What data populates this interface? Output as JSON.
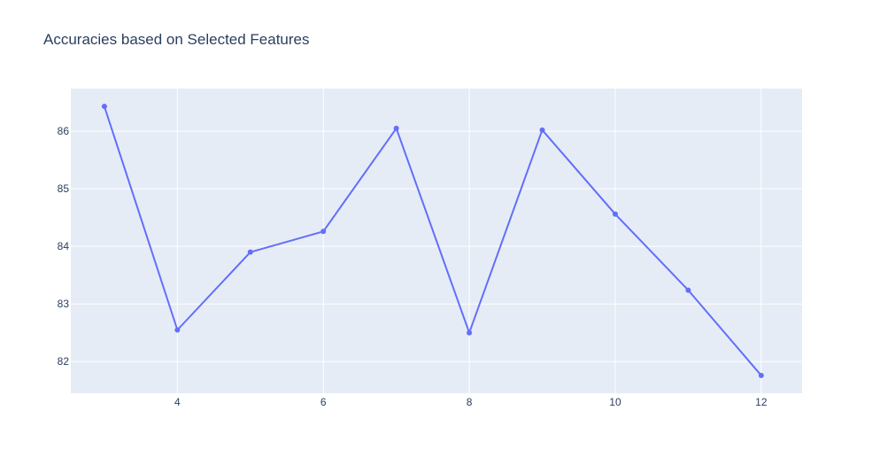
{
  "chart_data": {
    "type": "line",
    "title": "Accuracies based on Selected Features",
    "xlabel": "",
    "ylabel": "",
    "x": [
      3,
      4,
      5,
      6,
      7,
      8,
      9,
      10,
      11,
      12
    ],
    "series": [
      {
        "values": [
          86.43,
          82.55,
          83.9,
          84.26,
          86.05,
          82.5,
          86.02,
          84.56,
          83.24,
          81.76
        ]
      }
    ],
    "xlim": [
      2.54,
      12.56
    ],
    "ylim": [
      81.45,
      86.74
    ],
    "xticks": [
      4,
      6,
      8,
      10,
      12
    ],
    "yticks": [
      82,
      83,
      84,
      85,
      86
    ],
    "grid": true,
    "markers": true,
    "colors": {
      "line": "#636efa",
      "plot_bg": "#e5ecf6",
      "grid": "#ffffff",
      "text": "#2a3f5f"
    }
  }
}
